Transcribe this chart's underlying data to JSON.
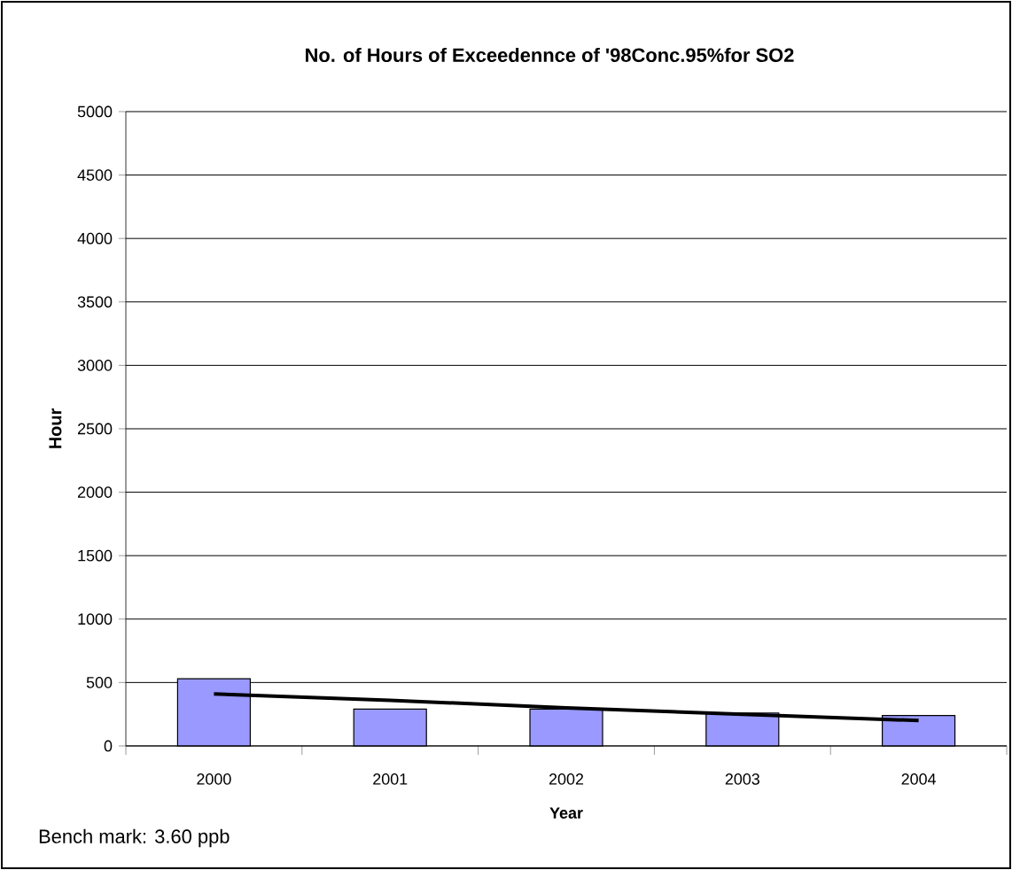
{
  "chart_data": {
    "type": "bar",
    "title": "No. of Hours of Exceedennce of '98Conc.95%for SO2",
    "xlabel": "Year",
    "ylabel": "Hour",
    "categories": [
      "2000",
      "2001",
      "2002",
      "2003",
      "2004"
    ],
    "series": [
      {
        "color": "#9999ff",
        "values": [
          530,
          290,
          290,
          260,
          240
        ]
      },
      {
        "type": "line",
        "color": "#000000",
        "values": [
          410,
          360,
          300,
          250,
          200
        ]
      }
    ],
    "ylim": [
      0,
      5000
    ],
    "yticks": [
      0,
      500,
      1000,
      1500,
      2000,
      2500,
      3000,
      3500,
      4000,
      4500,
      5000
    ],
    "grid": "y",
    "annotations": [
      "Bench mark: 3.60 ppb"
    ]
  }
}
